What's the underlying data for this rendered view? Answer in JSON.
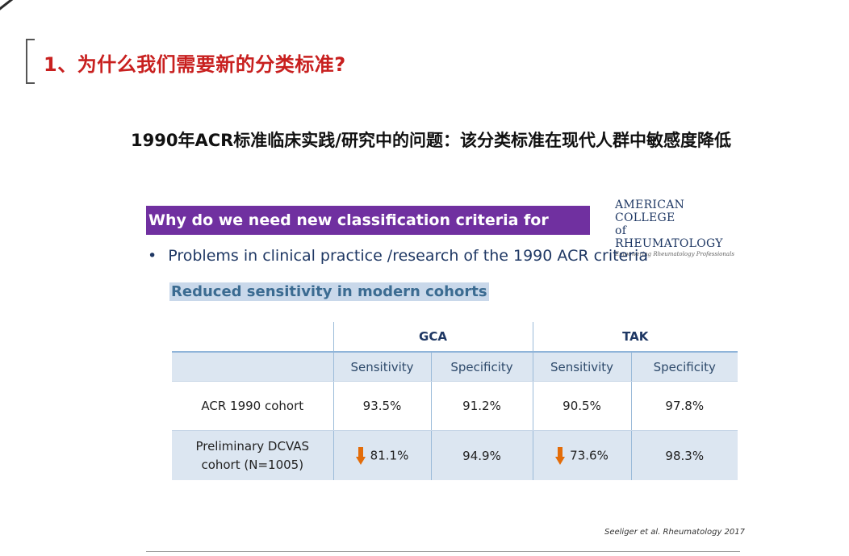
{
  "slide": {
    "title": "1、为什么我们需要新的分类标准?",
    "subtitle": "1990年ACR标准临床实践/研究中的问题：该分类标准在现代人群中敏感度降低"
  },
  "banner": {
    "text": "Why do we need new classification criteria for LVV?"
  },
  "logo": {
    "line1": "AMERICAN COLLEGE",
    "line2": "of RHEUMATOLOGY",
    "tagline": "Empowering Rheumatology Professionals"
  },
  "bullet": {
    "text": "Problems in clinical practice /research of the 1990 ACR criteria"
  },
  "highlight": {
    "text": "Reduced sensitivity in modern cohorts"
  },
  "table": {
    "groups": [
      "GCA",
      "TAK"
    ],
    "subheaders": [
      "Sensitivity",
      "Specificity",
      "Sensitivity",
      "Specificity"
    ],
    "rows": [
      {
        "label_line1": "ACR 1990 cohort",
        "label_line2": "",
        "values": [
          "93.5%",
          "91.2%",
          "90.5%",
          "97.8%"
        ]
      },
      {
        "label_line1": "Preliminary DCVAS",
        "label_line2": "cohort (N=1005)",
        "values": [
          "81.1%",
          "94.9%",
          "73.6%",
          "98.3%"
        ]
      }
    ],
    "arrow_color": "#e36c09"
  },
  "citation": {
    "text": "Seeliger et al. Rheumatology 2017"
  },
  "colors": {
    "title_red": "#c8201f",
    "banner_purple": "#7030a0",
    "table_blue": "#dce6f1",
    "text_navy": "#1f3864"
  }
}
